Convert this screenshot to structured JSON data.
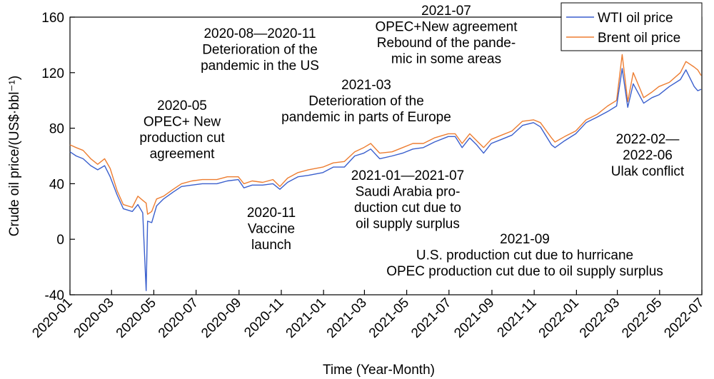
{
  "chart_data": {
    "type": "line",
    "xlabel": "Time (Year-Month)",
    "ylabel": "Crude oil price/(US$·bbl⁻¹)",
    "ylim": [
      -40,
      160
    ],
    "yticks": [
      -40,
      0,
      40,
      80,
      120,
      160
    ],
    "x_range": [
      "2020-01",
      "2022-07"
    ],
    "xticks": [
      "2020-01",
      "2020-03",
      "2020-05",
      "2020-07",
      "2020-09",
      "2020-11",
      "2021-01",
      "2021-03",
      "2021-05",
      "2021-07",
      "2021-09",
      "2021-11",
      "2022-01",
      "2022-03",
      "2022-05",
      "2022-07"
    ],
    "legend_position": "top-right",
    "series": [
      {
        "name": "WTI oil price",
        "color": "#3a5fcd",
        "points": [
          [
            "2020-01-01",
            63
          ],
          [
            "2020-01-10",
            60
          ],
          [
            "2020-01-20",
            58
          ],
          [
            "2020-01-31",
            53
          ],
          [
            "2020-02-10",
            50
          ],
          [
            "2020-02-20",
            53
          ],
          [
            "2020-02-28",
            45
          ],
          [
            "2020-03-09",
            32
          ],
          [
            "2020-03-18",
            22
          ],
          [
            "2020-03-31",
            20
          ],
          [
            "2020-04-08",
            25
          ],
          [
            "2020-04-15",
            19
          ],
          [
            "2020-04-20",
            -37
          ],
          [
            "2020-04-22",
            13
          ],
          [
            "2020-04-28",
            12
          ],
          [
            "2020-05-05",
            24
          ],
          [
            "2020-05-15",
            29
          ],
          [
            "2020-05-29",
            34
          ],
          [
            "2020-06-10",
            38
          ],
          [
            "2020-06-25",
            39
          ],
          [
            "2020-07-10",
            40
          ],
          [
            "2020-07-31",
            40
          ],
          [
            "2020-08-15",
            42
          ],
          [
            "2020-08-31",
            43
          ],
          [
            "2020-09-08",
            37
          ],
          [
            "2020-09-20",
            39
          ],
          [
            "2020-10-05",
            39
          ],
          [
            "2020-10-20",
            40
          ],
          [
            "2020-10-30",
            36
          ],
          [
            "2020-11-10",
            41
          ],
          [
            "2020-11-25",
            45
          ],
          [
            "2020-12-10",
            46
          ],
          [
            "2020-12-31",
            48
          ],
          [
            "2021-01-15",
            52
          ],
          [
            "2021-01-31",
            52
          ],
          [
            "2021-02-15",
            60
          ],
          [
            "2021-02-28",
            62
          ],
          [
            "2021-03-10",
            65
          ],
          [
            "2021-03-23",
            58
          ],
          [
            "2021-04-10",
            60
          ],
          [
            "2021-04-25",
            62
          ],
          [
            "2021-05-10",
            65
          ],
          [
            "2021-05-25",
            66
          ],
          [
            "2021-06-10",
            70
          ],
          [
            "2021-06-30",
            74
          ],
          [
            "2021-07-10",
            74
          ],
          [
            "2021-07-20",
            66
          ],
          [
            "2021-07-31",
            73
          ],
          [
            "2021-08-10",
            68
          ],
          [
            "2021-08-20",
            62
          ],
          [
            "2021-08-31",
            69
          ],
          [
            "2021-09-15",
            72
          ],
          [
            "2021-09-30",
            75
          ],
          [
            "2021-10-15",
            82
          ],
          [
            "2021-10-31",
            84
          ],
          [
            "2021-11-10",
            81
          ],
          [
            "2021-11-26",
            68
          ],
          [
            "2021-12-01",
            66
          ],
          [
            "2021-12-15",
            71
          ],
          [
            "2021-12-31",
            76
          ],
          [
            "2022-01-15",
            84
          ],
          [
            "2022-01-31",
            88
          ],
          [
            "2022-02-15",
            92
          ],
          [
            "2022-02-28",
            96
          ],
          [
            "2022-03-08",
            123
          ],
          [
            "2022-03-16",
            95
          ],
          [
            "2022-03-24",
            112
          ],
          [
            "2022-04-08",
            98
          ],
          [
            "2022-04-20",
            102
          ],
          [
            "2022-04-30",
            104
          ],
          [
            "2022-05-15",
            110
          ],
          [
            "2022-05-31",
            115
          ],
          [
            "2022-06-08",
            122
          ],
          [
            "2022-06-20",
            110
          ],
          [
            "2022-06-25",
            107
          ],
          [
            "2022-06-30",
            108
          ]
        ]
      },
      {
        "name": "Brent oil price",
        "color": "#ed7d31",
        "points": [
          [
            "2020-01-01",
            68
          ],
          [
            "2020-01-10",
            66
          ],
          [
            "2020-01-20",
            64
          ],
          [
            "2020-01-31",
            58
          ],
          [
            "2020-02-10",
            54
          ],
          [
            "2020-02-20",
            58
          ],
          [
            "2020-02-28",
            51
          ],
          [
            "2020-03-09",
            35
          ],
          [
            "2020-03-18",
            25
          ],
          [
            "2020-03-31",
            23
          ],
          [
            "2020-04-08",
            31
          ],
          [
            "2020-04-15",
            28
          ],
          [
            "2020-04-20",
            26
          ],
          [
            "2020-04-22",
            18
          ],
          [
            "2020-04-28",
            20
          ],
          [
            "2020-05-05",
            29
          ],
          [
            "2020-05-15",
            31
          ],
          [
            "2020-05-29",
            36
          ],
          [
            "2020-06-10",
            40
          ],
          [
            "2020-06-25",
            42
          ],
          [
            "2020-07-10",
            43
          ],
          [
            "2020-07-31",
            43
          ],
          [
            "2020-08-15",
            45
          ],
          [
            "2020-08-31",
            45
          ],
          [
            "2020-09-08",
            40
          ],
          [
            "2020-09-20",
            42
          ],
          [
            "2020-10-05",
            41
          ],
          [
            "2020-10-20",
            43
          ],
          [
            "2020-10-30",
            38
          ],
          [
            "2020-11-10",
            44
          ],
          [
            "2020-11-25",
            48
          ],
          [
            "2020-12-10",
            50
          ],
          [
            "2020-12-31",
            52
          ],
          [
            "2021-01-15",
            55
          ],
          [
            "2021-01-31",
            56
          ],
          [
            "2021-02-15",
            63
          ],
          [
            "2021-02-28",
            66
          ],
          [
            "2021-03-10",
            69
          ],
          [
            "2021-03-23",
            62
          ],
          [
            "2021-04-10",
            63
          ],
          [
            "2021-04-25",
            66
          ],
          [
            "2021-05-10",
            69
          ],
          [
            "2021-05-25",
            69
          ],
          [
            "2021-06-10",
            73
          ],
          [
            "2021-06-30",
            76
          ],
          [
            "2021-07-10",
            76
          ],
          [
            "2021-07-20",
            69
          ],
          [
            "2021-07-31",
            76
          ],
          [
            "2021-08-10",
            71
          ],
          [
            "2021-08-20",
            66
          ],
          [
            "2021-08-31",
            72
          ],
          [
            "2021-09-15",
            75
          ],
          [
            "2021-09-30",
            78
          ],
          [
            "2021-10-15",
            85
          ],
          [
            "2021-10-31",
            86
          ],
          [
            "2021-11-10",
            84
          ],
          [
            "2021-11-26",
            73
          ],
          [
            "2021-12-01",
            70
          ],
          [
            "2021-12-15",
            74
          ],
          [
            "2021-12-31",
            78
          ],
          [
            "2022-01-15",
            86
          ],
          [
            "2022-01-31",
            90
          ],
          [
            "2022-02-15",
            96
          ],
          [
            "2022-02-28",
            100
          ],
          [
            "2022-03-08",
            133
          ],
          [
            "2022-03-16",
            99
          ],
          [
            "2022-03-24",
            120
          ],
          [
            "2022-04-08",
            102
          ],
          [
            "2022-04-20",
            106
          ],
          [
            "2022-04-30",
            110
          ],
          [
            "2022-05-15",
            113
          ],
          [
            "2022-05-31",
            120
          ],
          [
            "2022-06-08",
            128
          ],
          [
            "2022-06-20",
            124
          ],
          [
            "2022-06-25",
            122
          ],
          [
            "2022-06-30",
            118
          ]
        ]
      }
    ],
    "annotations": [
      {
        "lines": [
          "2020-05",
          "OPEC+ New",
          "production cut",
          "agreement"
        ]
      },
      {
        "lines": [
          "2020-08—2020-11",
          "Deterioration of the",
          "pandemic in the US"
        ]
      },
      {
        "lines": [
          "2021-07",
          "OPEC+New agreement",
          "Rebound of the pande-",
          "mic in some areas"
        ]
      },
      {
        "lines": [
          "2021-03",
          "Deterioration of the",
          "pandemic in parts of Europe"
        ]
      },
      {
        "lines": [
          "2022-02—",
          "2022-06",
          "Ulak conflict"
        ]
      },
      {
        "lines": [
          "2021-01—2021-07",
          "Saudi Arabia pro-",
          "duction cut due to",
          "oil supply surplus"
        ]
      },
      {
        "lines": [
          "2020-11",
          "Vaccine",
          "launch"
        ]
      },
      {
        "lines": [
          "2021-09",
          "U.S. production cut due to hurricane",
          "OPEC production cut due to oil supply surplus"
        ]
      }
    ]
  }
}
